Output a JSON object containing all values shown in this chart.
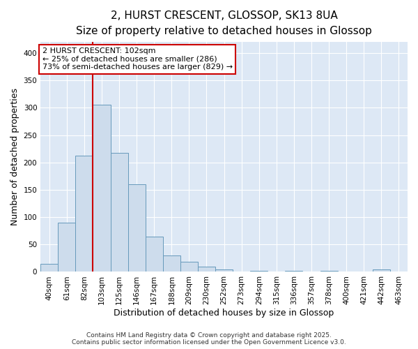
{
  "title_line1": "2, HURST CRESCENT, GLOSSOP, SK13 8UA",
  "title_line2": "Size of property relative to detached houses in Glossop",
  "xlabel": "Distribution of detached houses by size in Glossop",
  "ylabel": "Number of detached properties",
  "categories": [
    "40sqm",
    "61sqm",
    "82sqm",
    "103sqm",
    "125sqm",
    "146sqm",
    "167sqm",
    "188sqm",
    "209sqm",
    "230sqm",
    "252sqm",
    "273sqm",
    "294sqm",
    "315sqm",
    "336sqm",
    "357sqm",
    "378sqm",
    "400sqm",
    "421sqm",
    "442sqm",
    "463sqm"
  ],
  "values": [
    15,
    90,
    212,
    305,
    218,
    160,
    65,
    30,
    18,
    9,
    5,
    0,
    2,
    0,
    2,
    0,
    2,
    0,
    0,
    4,
    0
  ],
  "bar_color": "#cddcec",
  "bar_edge_color": "#6699bb",
  "vline_color": "#cc0000",
  "vline_x": 2.5,
  "annotation_line1": "2 HURST CRESCENT: 102sqm",
  "annotation_line2": "← 25% of detached houses are smaller (286)",
  "annotation_line3": "73% of semi-detached houses are larger (829) →",
  "annotation_box_facecolor": "#ffffff",
  "annotation_box_edgecolor": "#cc0000",
  "ylim": [
    0,
    420
  ],
  "yticks": [
    0,
    50,
    100,
    150,
    200,
    250,
    300,
    350,
    400
  ],
  "background_color": "#ffffff",
  "plot_bg_color": "#dde8f5",
  "grid_color": "#ffffff",
  "footer_text": "Contains HM Land Registry data © Crown copyright and database right 2025.\nContains public sector information licensed under the Open Government Licence v3.0.",
  "title_fontsize": 11,
  "subtitle_fontsize": 9.5,
  "axis_label_fontsize": 9,
  "tick_fontsize": 7.5,
  "annotation_fontsize": 8,
  "footer_fontsize": 6.5
}
